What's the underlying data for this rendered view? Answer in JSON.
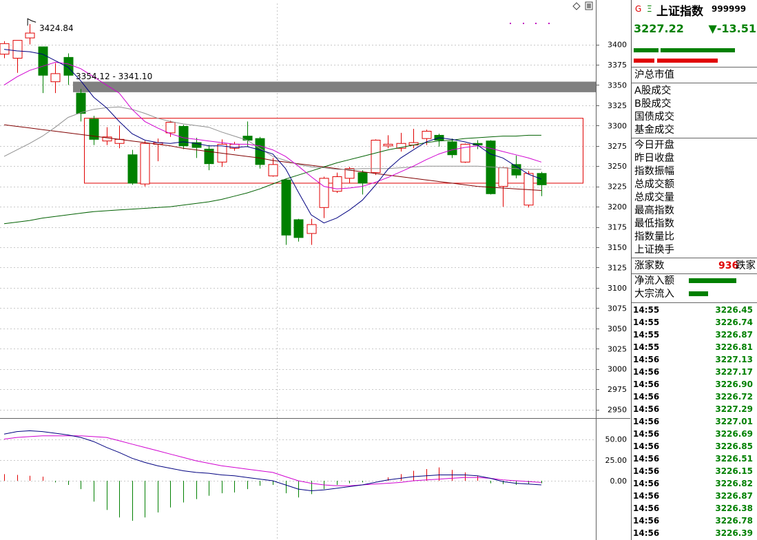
{
  "chart_data": {
    "type": "candlestick",
    "candles": [
      {
        "o": 3388,
        "c": 3401,
        "h": 3404,
        "l": 3383
      },
      {
        "o": 3383,
        "c": 3405,
        "h": 3405,
        "l": 3365
      },
      {
        "o": 3408,
        "c": 3414,
        "h": 3425,
        "l": 3400
      },
      {
        "o": 3397,
        "c": 3362,
        "h": 3397,
        "l": 3340
      },
      {
        "o": 3354,
        "c": 3364,
        "h": 3377,
        "l": 3340
      },
      {
        "o": 3384,
        "c": 3362,
        "h": 3389,
        "l": 3350
      },
      {
        "o": 3340,
        "c": 3315,
        "h": 3345,
        "l": 3305
      },
      {
        "o": 3308,
        "c": 3283,
        "h": 3312,
        "l": 3276
      },
      {
        "o": 3281,
        "c": 3286,
        "h": 3298,
        "l": 3276
      },
      {
        "o": 3278,
        "c": 3283,
        "h": 3300,
        "l": 3272
      },
      {
        "o": 3264,
        "c": 3229,
        "h": 3270,
        "l": 3227
      },
      {
        "o": 3228,
        "c": 3278,
        "h": 3281,
        "l": 3225
      },
      {
        "o": 3277,
        "c": 3279,
        "h": 3284,
        "l": 3256
      },
      {
        "o": 3291,
        "c": 3304,
        "h": 3306,
        "l": 3286
      },
      {
        "o": 3299,
        "c": 3275,
        "h": 3301,
        "l": 3271
      },
      {
        "o": 3279,
        "c": 3273,
        "h": 3285,
        "l": 3260
      },
      {
        "o": 3271,
        "c": 3253,
        "h": 3276,
        "l": 3245
      },
      {
        "o": 3255,
        "c": 3277,
        "h": 3283,
        "l": 3249
      },
      {
        "o": 3272,
        "c": 3277,
        "h": 3280,
        "l": 3269
      },
      {
        "o": 3287,
        "c": 3282,
        "h": 3305,
        "l": 3274
      },
      {
        "o": 3284,
        "c": 3252,
        "h": 3286,
        "l": 3247
      },
      {
        "o": 3238,
        "c": 3252,
        "h": 3260,
        "l": 3237
      },
      {
        "o": 3233,
        "c": 3165,
        "h": 3234,
        "l": 3153
      },
      {
        "o": 3184,
        "c": 3162,
        "h": 3185,
        "l": 3157
      },
      {
        "o": 3167,
        "c": 3178,
        "h": 3185,
        "l": 3153
      },
      {
        "o": 3199,
        "c": 3235,
        "h": 3237,
        "l": 3186
      },
      {
        "o": 3219,
        "c": 3237,
        "h": 3242,
        "l": 3217
      },
      {
        "o": 3235,
        "c": 3247,
        "h": 3249,
        "l": 3229
      },
      {
        "o": 3242,
        "c": 3229,
        "h": 3245,
        "l": 3215
      },
      {
        "o": 3242,
        "c": 3282,
        "h": 3283,
        "l": 3239
      },
      {
        "o": 3275,
        "c": 3277,
        "h": 3288,
        "l": 3272
      },
      {
        "o": 3272,
        "c": 3278,
        "h": 3291,
        "l": 3268
      },
      {
        "o": 3276,
        "c": 3279,
        "h": 3296,
        "l": 3272
      },
      {
        "o": 3284,
        "c": 3293,
        "h": 3295,
        "l": 3276
      },
      {
        "o": 3288,
        "c": 3282,
        "h": 3290,
        "l": 3274
      },
      {
        "o": 3280,
        "c": 3264,
        "h": 3284,
        "l": 3260
      },
      {
        "o": 3255,
        "c": 3277,
        "h": 3278,
        "l": 3254
      },
      {
        "o": 3278,
        "c": 3276,
        "h": 3282,
        "l": 3271
      },
      {
        "o": 3281,
        "c": 3216,
        "h": 3282,
        "l": 3215
      },
      {
        "o": 3225,
        "c": 3248,
        "h": 3249,
        "l": 3200
      },
      {
        "o": 3252,
        "c": 3239,
        "h": 3263,
        "l": 3235
      },
      {
        "o": 3202,
        "c": 3241,
        "h": 3244,
        "l": 3199
      },
      {
        "o": 3241,
        "c": 3227,
        "h": 3243,
        "l": 3213
      }
    ],
    "ma5": [
      3394,
      3392,
      3391,
      3388,
      3380,
      3372,
      3355,
      3335,
      3322,
      3305,
      3290,
      3282,
      3279,
      3278,
      3280,
      3278,
      3275,
      3275,
      3273,
      3274,
      3270,
      3265,
      3247,
      3218,
      3190,
      3180,
      3186,
      3196,
      3208,
      3226,
      3246,
      3260,
      3270,
      3280,
      3285,
      3283,
      3280,
      3276,
      3265,
      3260,
      3250,
      3240,
      3234
    ],
    "ma10": [
      3350,
      3360,
      3368,
      3373,
      3378,
      3376,
      3370,
      3360,
      3350,
      3340,
      3320,
      3305,
      3297,
      3290,
      3285,
      3283,
      3281,
      3279,
      3277,
      3277,
      3275,
      3270,
      3262,
      3250,
      3237,
      3225,
      3222,
      3223,
      3225,
      3230,
      3236,
      3243,
      3250,
      3258,
      3265,
      3270,
      3273,
      3275,
      3272,
      3268,
      3264,
      3260,
      3255
    ],
    "ma20": [
      3262,
      3270,
      3278,
      3287,
      3298,
      3310,
      3316,
      3320,
      3322,
      3323,
      3320,
      3315,
      3309,
      3305,
      3302,
      3300,
      3298,
      3292,
      3287,
      3282,
      3272,
      3262,
      3257,
      3252,
      3249,
      3248,
      3246,
      3246,
      3247,
      3247,
      3247,
      3248,
      3249,
      3250,
      3250,
      3250,
      3250,
      3250,
      3249,
      3248,
      3247,
      3246,
      3246
    ],
    "ma60": [
      3179,
      3181,
      3183,
      3186,
      3188,
      3190,
      3192,
      3194,
      3195,
      3196,
      3197,
      3198,
      3199,
      3200,
      3202,
      3204,
      3206,
      3209,
      3213,
      3217,
      3222,
      3228,
      3234,
      3239,
      3244,
      3249,
      3254,
      3258,
      3262,
      3266,
      3270,
      3273,
      3276,
      3279,
      3281,
      3282,
      3284,
      3285,
      3286,
      3287,
      3287,
      3288,
      3288
    ],
    "ma250": [
      3301,
      3299,
      3297,
      3295,
      3293,
      3291,
      3289,
      3287,
      3285,
      3283,
      3281,
      3279,
      3277,
      3275,
      3272,
      3270,
      3268,
      3266,
      3264,
      3262,
      3260,
      3257,
      3255,
      3253,
      3251,
      3249,
      3247,
      3245,
      3243,
      3241,
      3239,
      3237,
      3235,
      3233,
      3231,
      3229,
      3227,
      3225,
      3224,
      3223,
      3222,
      3221,
      3220
    ],
    "macd_hist": [
      8,
      7,
      6,
      5,
      -2,
      -5,
      -10,
      -25,
      -35,
      -44,
      -48,
      -44,
      -38,
      -32,
      -26,
      -22,
      -18,
      -15,
      -14,
      -10,
      -6,
      -5,
      -15,
      -20,
      -16,
      -10,
      -5,
      -3,
      -2,
      0,
      4,
      8,
      12,
      14,
      16,
      13,
      10,
      6,
      -3,
      -4,
      -5,
      -4,
      -3
    ],
    "dif": [
      56,
      59,
      60,
      59,
      57,
      55,
      52,
      47,
      40,
      34,
      27,
      22,
      18,
      15,
      12,
      10,
      9,
      7,
      6,
      4,
      2,
      0,
      -5,
      -10,
      -12,
      -11,
      -9,
      -7,
      -5,
      -2,
      1,
      3,
      5,
      6,
      7,
      7,
      7,
      6,
      3,
      -1,
      -3,
      -4,
      -5
    ],
    "dea": [
      50,
      52,
      53,
      54,
      54,
      54,
      54,
      53,
      52,
      48,
      44,
      40,
      36,
      32,
      28,
      24,
      21,
      18,
      16,
      14,
      12,
      10,
      5,
      0,
      -3,
      -5,
      -6,
      -6,
      -5,
      -4,
      -3,
      -2,
      0,
      1,
      2,
      3,
      4,
      4,
      3,
      1,
      0,
      -1,
      -2
    ],
    "yaxis_main": [
      "3400",
      "3375",
      "3350",
      "3325",
      "3300",
      "3275",
      "3250",
      "3225",
      "3200",
      "3175",
      "3150",
      "3125",
      "3100",
      "3075",
      "3050",
      "3025",
      "3000",
      "2975",
      "2950"
    ],
    "ylim_main": [
      2940,
      3425
    ],
    "yaxis_sub": [
      "50.00",
      "25.00",
      "0.00"
    ],
    "ylim_sub": [
      -60,
      70
    ],
    "high_annotation": "3424.84",
    "band_annotation": "3354.12 - 3341.10",
    "band_range": [
      3341.1,
      3354.12
    ],
    "box_range": [
      3229,
      3309
    ],
    "grid": true
  },
  "colors": {
    "up": "#e00000",
    "down": "#008000",
    "ma5": "#000080",
    "ma10": "#d000d0",
    "ma20": "#909090",
    "ma60": "#006000",
    "ma250": "#800000",
    "band": "#808080",
    "macd_dif": "#000080",
    "macd_dea": "#d000d0"
  },
  "panel": {
    "market_letters": [
      "G",
      "Ξ"
    ],
    "title": "上证指数",
    "code": "999999",
    "price": "3227.22",
    "change": "▼-13.51",
    "labels_a": [
      "沪总市值",
      "A股成交",
      "B股成交",
      "国债成交",
      "基金成交"
    ],
    "labels_b": [
      "今日开盘",
      "昨日收盘",
      "指数振幅",
      "总成交额",
      "总成交量",
      "最高指数",
      "最低指数",
      "指数量比",
      "上证换手"
    ],
    "advance_label": "涨家数",
    "decline_count": "936",
    "decline_label": "跌家",
    "flow_labels": [
      "净流入额",
      "大宗流入"
    ],
    "ticks": [
      {
        "t": "14:55",
        "p": "3226.45"
      },
      {
        "t": "14:55",
        "p": "3226.74"
      },
      {
        "t": "14:55",
        "p": "3226.87"
      },
      {
        "t": "14:55",
        "p": "3226.81"
      },
      {
        "t": "14:56",
        "p": "3227.13"
      },
      {
        "t": "14:56",
        "p": "3227.17"
      },
      {
        "t": "14:56",
        "p": "3226.90"
      },
      {
        "t": "14:56",
        "p": "3226.72"
      },
      {
        "t": "14:56",
        "p": "3227.29"
      },
      {
        "t": "14:56",
        "p": "3227.01"
      },
      {
        "t": "14:56",
        "p": "3226.69"
      },
      {
        "t": "14:56",
        "p": "3226.85"
      },
      {
        "t": "14:56",
        "p": "3226.51"
      },
      {
        "t": "14:56",
        "p": "3226.15"
      },
      {
        "t": "14:56",
        "p": "3226.82"
      },
      {
        "t": "14:56",
        "p": "3226.87"
      },
      {
        "t": "14:56",
        "p": "3226.38"
      },
      {
        "t": "14:56",
        "p": "3226.78"
      },
      {
        "t": "14:56",
        "p": "3226.39"
      }
    ]
  }
}
